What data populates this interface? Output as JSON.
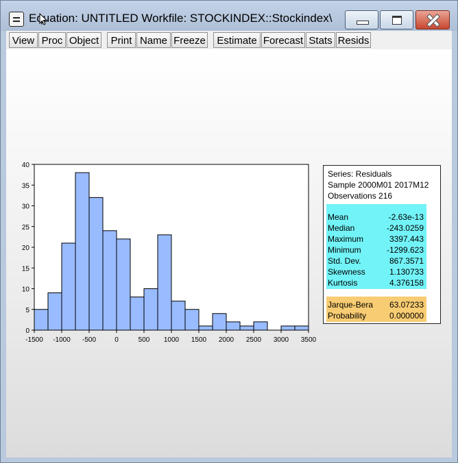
{
  "window": {
    "title": "Equation: UNTITLED    Workfile: STOCKINDEX::Stockindex\\"
  },
  "toolbar": {
    "buttons": [
      "View",
      "Proc",
      "Object",
      "Print",
      "Name",
      "Freeze",
      "Estimate",
      "Forecast",
      "Stats",
      "Resids"
    ]
  },
  "chart_data": {
    "type": "bar",
    "bin_edges": [
      -1500,
      -1250,
      -1000,
      -750,
      -500,
      -250,
      0,
      250,
      500,
      750,
      1000,
      1250,
      1500,
      1750,
      2000,
      2250,
      2500,
      2750,
      3000,
      3250,
      3500
    ],
    "values": [
      5,
      9,
      21,
      38,
      32,
      24,
      22,
      8,
      10,
      23,
      7,
      5,
      1,
      4,
      2,
      1,
      2,
      0,
      1,
      1
    ],
    "xticks": [
      -1500,
      -1000,
      -500,
      0,
      500,
      1000,
      1500,
      2000,
      2500,
      3000,
      3500
    ],
    "yticks": [
      0,
      5,
      10,
      15,
      20,
      25,
      30,
      35,
      40
    ],
    "xlim": [
      -1500,
      3500
    ],
    "ylim": [
      0,
      40
    ],
    "bar_color": "#99bbff",
    "xlabel": "",
    "ylabel": ""
  },
  "stats": {
    "series": "Series: Residuals",
    "sample": "Sample 2000M01 2017M12",
    "observations": "Observations 216",
    "moments": [
      {
        "label": "Mean",
        "value": "-2.63e-13"
      },
      {
        "label": "Median",
        "value": "-243.0259"
      },
      {
        "label": "Maximum",
        "value": "3397.443"
      },
      {
        "label": "Minimum",
        "value": "-1299.623"
      },
      {
        "label": "Std. Dev.",
        "value": "867.3571"
      },
      {
        "label": "Skewness",
        "value": "1.130733"
      },
      {
        "label": "Kurtosis",
        "value": "4.376158"
      }
    ],
    "tests": [
      {
        "label": "Jarque-Bera",
        "value": "63.07233"
      },
      {
        "label": "Probability",
        "value": "0.000000"
      }
    ],
    "moment_bg": "#72f3f7",
    "test_bg": "#f8cc72"
  }
}
